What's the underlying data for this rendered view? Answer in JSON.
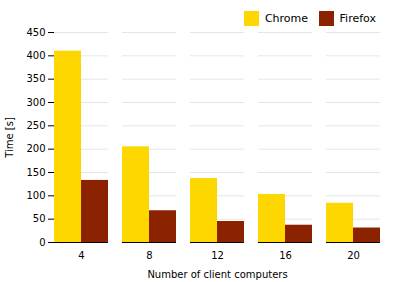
{
  "chart_data": {
    "type": "bar",
    "categories": [
      4,
      8,
      12,
      16,
      20
    ],
    "series": [
      {
        "name": "Chrome",
        "color": "#FFD700",
        "values": [
          410,
          205,
          137,
          103,
          84
        ]
      },
      {
        "name": "Firefox",
        "color": "#8B2200",
        "values": [
          133,
          68,
          45,
          37,
          31
        ]
      }
    ],
    "xlabel": "Number of client computers",
    "ylabel": "Time [s]",
    "ylim": [
      0,
      450
    ],
    "yticks": [
      0,
      50,
      100,
      150,
      200,
      250,
      300,
      350,
      400,
      450
    ],
    "grid": true,
    "legend": "upper right"
  }
}
